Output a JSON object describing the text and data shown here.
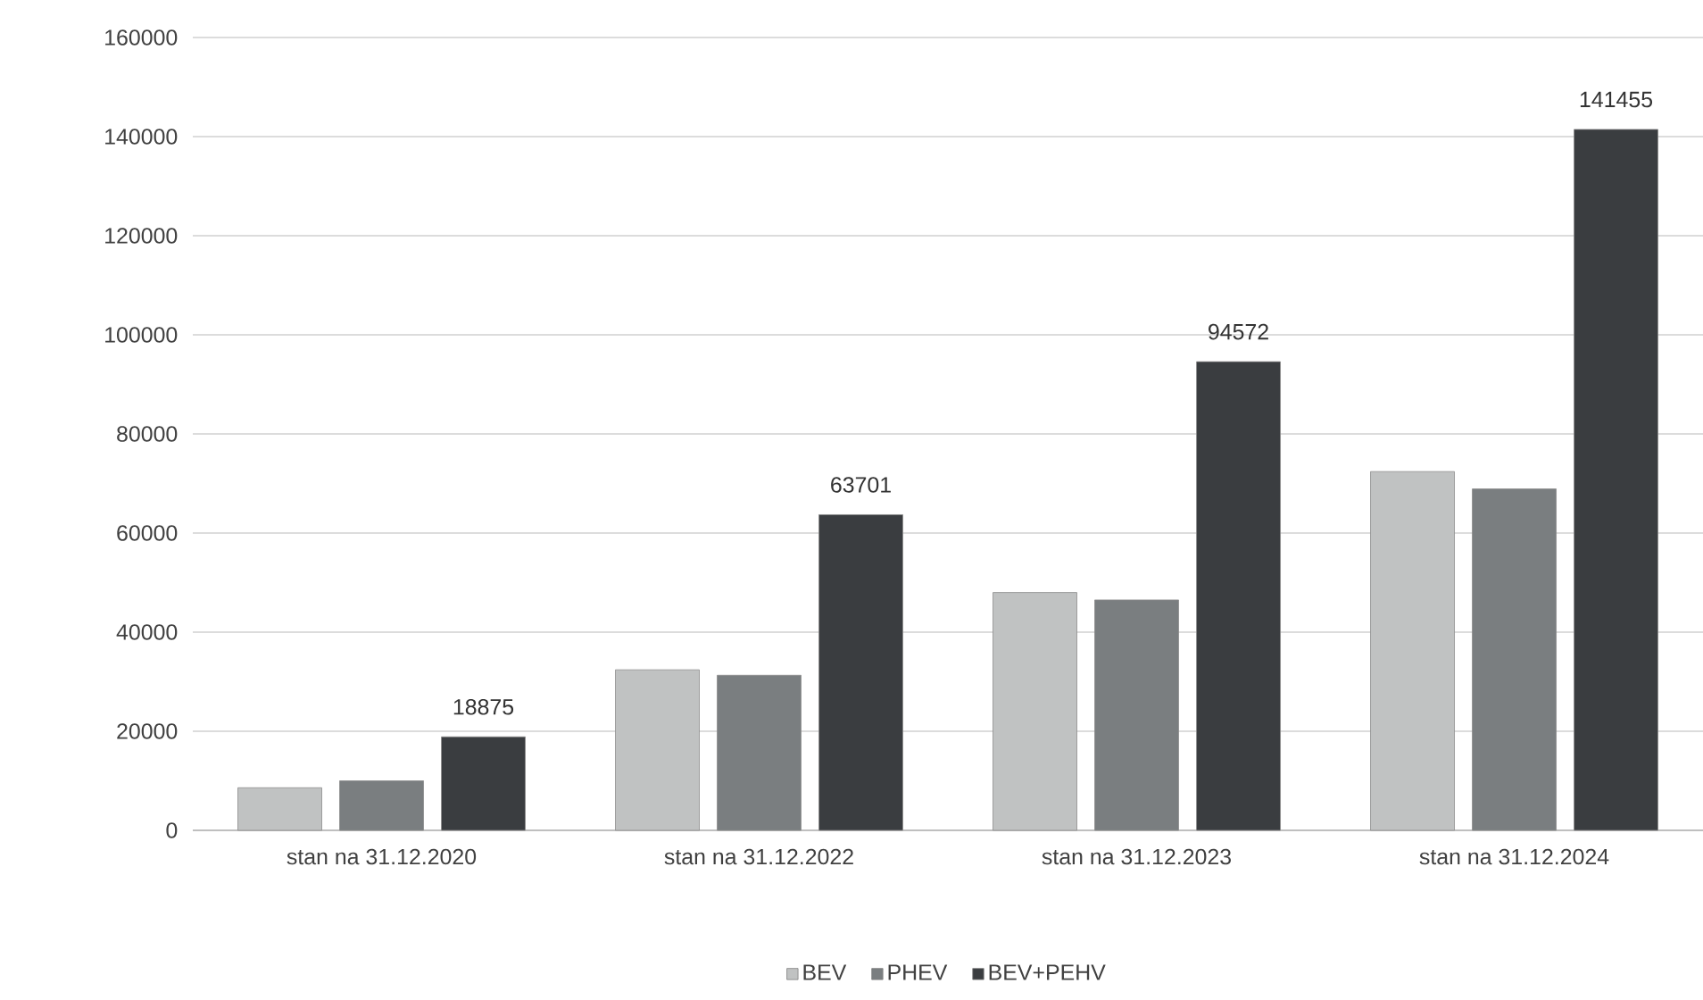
{
  "chart_data": {
    "type": "bar",
    "categories": [
      "stan na 31.12.2020",
      "stan na 31.12.2022",
      "stan na 31.12.2023",
      "stan na 31.12.2024"
    ],
    "series": [
      {
        "name": "BEV",
        "color": "#c0c2c2",
        "values": [
          8600,
          32400,
          48000,
          72400
        ]
      },
      {
        "name": "PHEV",
        "color": "#7a7e80",
        "values": [
          10000,
          31300,
          46500,
          68900
        ]
      },
      {
        "name": "BEV+PEHV",
        "color": "#3a3d40",
        "values": [
          18875,
          63701,
          94572,
          141455
        ],
        "value_labels": [
          "18875",
          "63701",
          "94572",
          "141455"
        ]
      }
    ],
    "ylim": [
      0,
      160000
    ],
    "yticks": [
      0,
      20000,
      40000,
      60000,
      80000,
      100000,
      120000,
      140000,
      160000
    ],
    "grid": "y",
    "legend": "bottom"
  }
}
